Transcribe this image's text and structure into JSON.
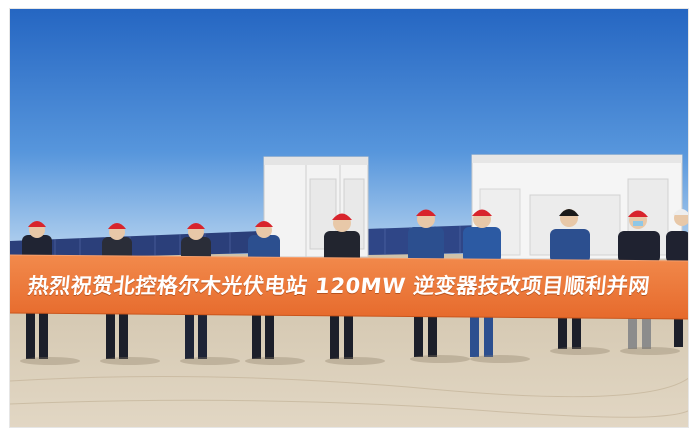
{
  "photo": {
    "description_label": "",
    "banner": {
      "text": "热烈祝贺北控格尔木光伏电站 120MW 逆变器技改项目顺利并网",
      "background_color": "#ef7a3d",
      "text_color": "#ffffff"
    },
    "colors": {
      "sky_top": "#2a6fc7",
      "sky_bottom": "#bcd8f2",
      "ground": "#d6c9b3",
      "solar_panel": "#2b3f7a",
      "container": "#f4f4f4",
      "helmet": "#d8242c",
      "workwear": "#2c4f8f"
    },
    "people_count": 13
  }
}
